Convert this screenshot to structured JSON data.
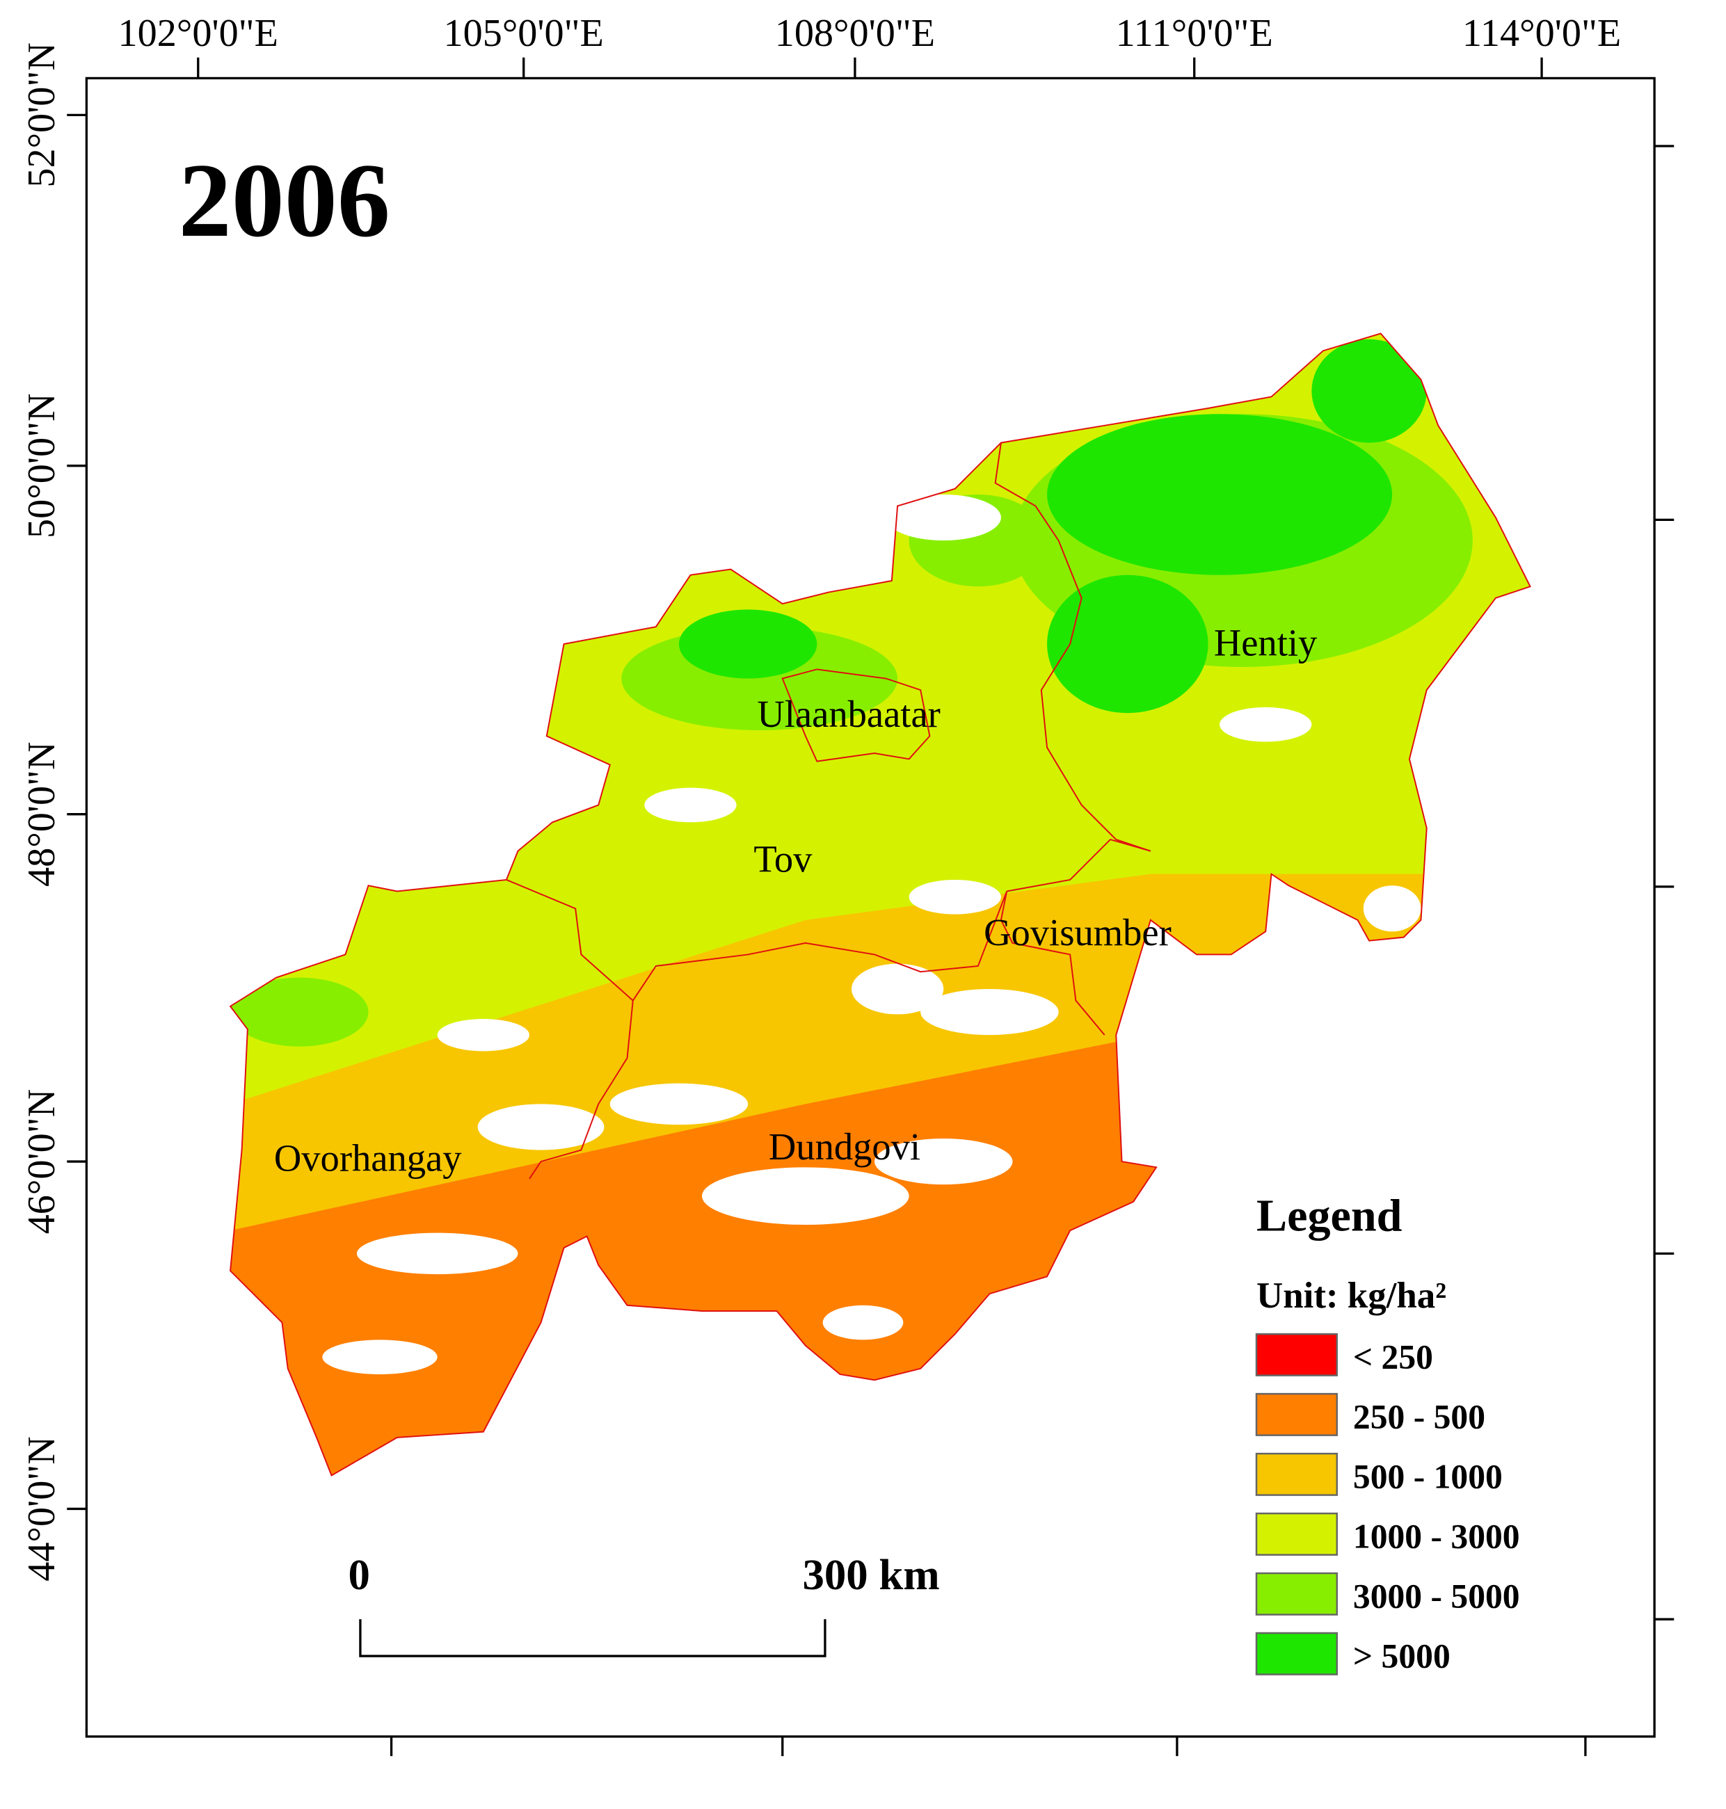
{
  "title": "2006",
  "longitude_labels": [
    "102°0'0\"E",
    "105°0'0\"E",
    "108°0'0\"E",
    "111°0'0\"E",
    "114°0'0\"E"
  ],
  "latitude_labels": [
    "52°0'0\"N",
    "50°0'0\"N",
    "48°0'0\"N",
    "46°0'0\"N",
    "44°0'0\"N"
  ],
  "regions": [
    {
      "label": "Hentiy"
    },
    {
      "label": "Ulaanbaatar"
    },
    {
      "label": "Tov"
    },
    {
      "label": "Govisumber"
    },
    {
      "label": "Ovorhangay"
    },
    {
      "label": "Dundgovi"
    }
  ],
  "legend": {
    "title": "Legend",
    "unit": "Unit: kg/ha²",
    "items": [
      {
        "label": "< 250",
        "color": "#ff0000"
      },
      {
        "label": "250 - 500",
        "color": "#ff7f00"
      },
      {
        "label": "500 - 1000",
        "color": "#f7c600"
      },
      {
        "label": "1000 - 3000",
        "color": "#d4f200"
      },
      {
        "label": "3000 - 5000",
        "color": "#88ee00"
      },
      {
        "label": "> 5000",
        "color": "#1fe600"
      }
    ]
  },
  "scale_bar": {
    "start": "0",
    "end": "300 km"
  }
}
